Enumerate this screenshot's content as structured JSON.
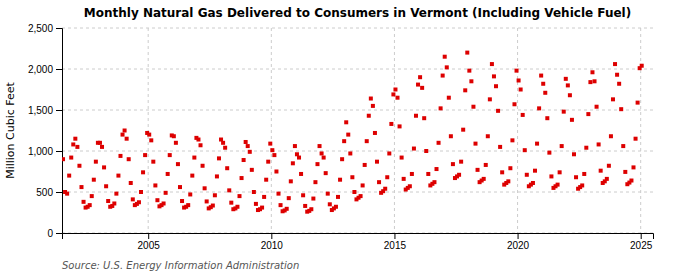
{
  "chart_data": {
    "type": "scatter",
    "title": "Monthly Natural Gas Delivered to Consumers in Vermont (Including Vehicle Fuel)",
    "ylabel": "Million Cubic Feet",
    "source": "Source: U.S. Energy Information Administration",
    "color": "#dd0000",
    "marker": "square",
    "grid": true,
    "xlim": [
      2001.5,
      2025.5
    ],
    "xticks": [
      2005,
      2010,
      2015,
      2020,
      2025
    ],
    "ylim": [
      0,
      2500
    ],
    "yticks": [
      0,
      500,
      {
        "value": 1000,
        "label": "1,000"
      },
      {
        "value": 1500,
        "label": "1,500"
      },
      {
        "value": 2000,
        "label": "2,000"
      },
      {
        "value": 2500,
        "label": "2,500"
      }
    ],
    "x": [
      2001.541667,
      2001.625,
      2001.708333,
      2001.791667,
      2001.875,
      2001.958333,
      2002.041667,
      2002.125,
      2002.208333,
      2002.291667,
      2002.375,
      2002.458333,
      2002.541667,
      2002.625,
      2002.708333,
      2002.791667,
      2002.875,
      2002.958333,
      2003.041667,
      2003.125,
      2003.208333,
      2003.291667,
      2003.375,
      2003.458333,
      2003.541667,
      2003.625,
      2003.708333,
      2003.791667,
      2003.875,
      2003.958333,
      2004.041667,
      2004.125,
      2004.208333,
      2004.291667,
      2004.375,
      2004.458333,
      2004.541667,
      2004.625,
      2004.708333,
      2004.791667,
      2004.875,
      2004.958333,
      2005.041667,
      2005.125,
      2005.208333,
      2005.291667,
      2005.375,
      2005.458333,
      2005.541667,
      2005.625,
      2005.708333,
      2005.791667,
      2005.875,
      2005.958333,
      2006.041667,
      2006.125,
      2006.208333,
      2006.291667,
      2006.375,
      2006.458333,
      2006.541667,
      2006.625,
      2006.708333,
      2006.791667,
      2006.875,
      2006.958333,
      2007.041667,
      2007.125,
      2007.208333,
      2007.291667,
      2007.375,
      2007.458333,
      2007.541667,
      2007.625,
      2007.708333,
      2007.791667,
      2007.875,
      2007.958333,
      2008.041667,
      2008.125,
      2008.208333,
      2008.291667,
      2008.375,
      2008.458333,
      2008.541667,
      2008.625,
      2008.708333,
      2008.791667,
      2008.875,
      2008.958333,
      2009.041667,
      2009.125,
      2009.208333,
      2009.291667,
      2009.375,
      2009.458333,
      2009.541667,
      2009.625,
      2009.708333,
      2009.791667,
      2009.875,
      2009.958333,
      2010.041667,
      2010.125,
      2010.208333,
      2010.291667,
      2010.375,
      2010.458333,
      2010.541667,
      2010.625,
      2010.708333,
      2010.791667,
      2010.875,
      2010.958333,
      2011.041667,
      2011.125,
      2011.208333,
      2011.291667,
      2011.375,
      2011.458333,
      2011.541667,
      2011.625,
      2011.708333,
      2011.791667,
      2011.875,
      2011.958333,
      2012.041667,
      2012.125,
      2012.208333,
      2012.291667,
      2012.375,
      2012.458333,
      2012.541667,
      2012.625,
      2012.708333,
      2012.791667,
      2012.875,
      2012.958333,
      2013.041667,
      2013.125,
      2013.208333,
      2013.291667,
      2013.375,
      2013.458333,
      2013.541667,
      2013.625,
      2013.708333,
      2013.791667,
      2013.875,
      2013.958333,
      2014.041667,
      2014.125,
      2014.208333,
      2014.291667,
      2014.375,
      2014.458333,
      2014.541667,
      2014.625,
      2014.708333,
      2014.791667,
      2014.875,
      2014.958333,
      2015.041667,
      2015.125,
      2015.208333,
      2015.291667,
      2015.375,
      2015.458333,
      2015.541667,
      2015.625,
      2015.708333,
      2015.791667,
      2015.875,
      2015.958333,
      2016.041667,
      2016.125,
      2016.208333,
      2016.291667,
      2016.375,
      2016.458333,
      2016.541667,
      2016.625,
      2016.708333,
      2016.791667,
      2016.875,
      2016.958333,
      2017.041667,
      2017.125,
      2017.208333,
      2017.291667,
      2017.375,
      2017.458333,
      2017.541667,
      2017.625,
      2017.708333,
      2017.791667,
      2017.875,
      2017.958333,
      2018.041667,
      2018.125,
      2018.208333,
      2018.291667,
      2018.375,
      2018.458333,
      2018.541667,
      2018.625,
      2018.708333,
      2018.791667,
      2018.875,
      2018.958333,
      2019.041667,
      2019.125,
      2019.208333,
      2019.291667,
      2019.375,
      2019.458333,
      2019.541667,
      2019.625,
      2019.708333,
      2019.791667,
      2019.875,
      2019.958333,
      2020.041667,
      2020.125,
      2020.208333,
      2020.291667,
      2020.375,
      2020.458333,
      2020.541667,
      2020.625,
      2020.708333,
      2020.791667,
      2020.875,
      2020.958333,
      2021.041667,
      2021.125,
      2021.208333,
      2021.291667,
      2021.375,
      2021.458333,
      2021.541667,
      2021.625,
      2021.708333,
      2021.791667,
      2021.875,
      2021.958333,
      2022.041667,
      2022.125,
      2022.208333,
      2022.291667,
      2022.375,
      2022.458333,
      2022.541667,
      2022.625,
      2022.708333,
      2022.791667,
      2022.875,
      2022.958333,
      2023.041667,
      2023.125,
      2023.208333,
      2023.291667,
      2023.375,
      2023.458333,
      2023.541667,
      2023.625,
      2023.708333,
      2023.791667,
      2023.875,
      2023.958333,
      2024.041667,
      2024.125,
      2024.208333,
      2024.291667,
      2024.375,
      2024.458333,
      2024.541667,
      2024.625,
      2024.708333,
      2024.791667,
      2024.875,
      2024.958333,
      2025.041667
    ],
    "values": [
      900,
      500,
      480,
      700,
      920,
      1080,
      1150,
      1050,
      820,
      560,
      380,
      310,
      320,
      340,
      450,
      650,
      870,
      1100,
      1100,
      1050,
      800,
      570,
      390,
      320,
      330,
      360,
      480,
      700,
      940,
      1200,
      1250,
      1150,
      900,
      610,
      410,
      340,
      355,
      375,
      500,
      740,
      950,
      1220,
      1200,
      1130,
      870,
      580,
      400,
      325,
      340,
      360,
      490,
      720,
      950,
      1190,
      1180,
      1100,
      840,
      560,
      390,
      310,
      320,
      340,
      470,
      700,
      920,
      1160,
      1140,
      1070,
      820,
      545,
      385,
      300,
      315,
      335,
      460,
      690,
      910,
      1140,
      1100,
      1040,
      790,
      520,
      370,
      290,
      300,
      320,
      450,
      670,
      890,
      1110,
      1060,
      990,
      770,
      500,
      355,
      280,
      290,
      310,
      440,
      650,
      870,
      1090,
      1010,
      950,
      750,
      480,
      340,
      265,
      275,
      295,
      425,
      630,
      850,
      1060,
      960,
      920,
      720,
      460,
      330,
      260,
      270,
      290,
      420,
      620,
      840,
      1060,
      970,
      920,
      730,
      480,
      350,
      280,
      300,
      320,
      440,
      650,
      900,
      1120,
      1350,
      1200,
      970,
      680,
      500,
      410,
      430,
      450,
      580,
      830,
      1120,
      1430,
      1640,
      1550,
      1220,
      870,
      620,
      490,
      510,
      540,
      680,
      970,
      1330,
      1690,
      1750,
      1650,
      1300,
      920,
      660,
      530,
      550,
      570,
      720,
      1030,
      1430,
      1810,
      1900,
      1770,
      1400,
      1000,
      720,
      580,
      600,
      620,
      780,
      1100,
      1520,
      1920,
      2150,
      2020,
      1650,
      1180,
      840,
      670,
      690,
      710,
      870,
      1260,
      1740,
      2200,
      1980,
      1850,
      1540,
      1090,
      770,
      620,
      640,
      660,
      830,
      1180,
      1630,
      2060,
      1910,
      1790,
      1490,
      1050,
      740,
      590,
      610,
      630,
      790,
      1130,
      1570,
      1980,
      1860,
      1750,
      1440,
      1010,
      710,
      570,
      590,
      610,
      760,
      1090,
      1520,
      1920,
      1820,
      1710,
      1400,
      980,
      690,
      550,
      570,
      590,
      740,
      1060,
      1480,
      1880,
      1800,
      1680,
      1380,
      960,
      680,
      540,
      560,
      580,
      720,
      1040,
      1450,
      1840,
      1960,
      1850,
      1540,
      1080,
      760,
      610,
      630,
      660,
      820,
      1180,
      1630,
      2060,
      1930,
      1820,
      1510,
      1060,
      745,
      595,
      615,
      640,
      800,
      1150,
      1590,
      2010,
      2040
    ]
  }
}
